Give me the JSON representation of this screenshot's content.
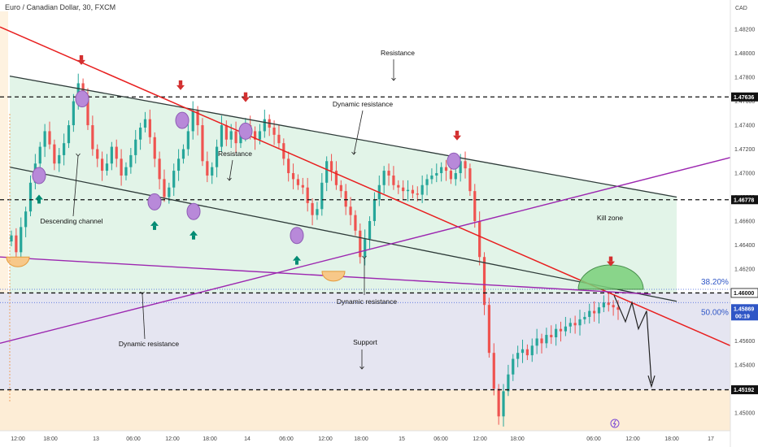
{
  "header": {
    "title": "Euro / Canadian Dollar, 30, FXCM",
    "currency": "CAD"
  },
  "colors": {
    "up": "#26a69a",
    "down": "#ef5350",
    "red_line": "#e81f1f",
    "purple_line": "#9c27b0",
    "channel": "#2e3b39",
    "channel_fill": "#dff3e6",
    "resistance_zone": "#dcdcec",
    "support_zone": "#fde9cc",
    "kill_zone": "#7ad07a",
    "marker": "#b889d9"
  },
  "chart_data": {
    "type": "candlestick",
    "ylim": [
      1.4485,
      1.4835
    ],
    "x_ticks": [
      "12:00",
      "18:00",
      "13",
      "06:00",
      "12:00",
      "18:00",
      "14",
      "06:00",
      "12:00",
      "18:00",
      "15",
      "06:00",
      "12:00",
      "18:00",
      "06:00",
      "12:00",
      "18:00",
      "17"
    ],
    "y_ticks": [
      "1.48200",
      "1.48000",
      "1.47800",
      "1.47600",
      "1.47400",
      "1.47200",
      "1.47000",
      "1.46800",
      "1.46600",
      "1.46400",
      "1.46200",
      "1.46000",
      "1.45800",
      "1.45600",
      "1.45400",
      "1.45200",
      "1.45000",
      "1.44800"
    ],
    "price_tags": [
      {
        "label": "1.47636",
        "value": 1.47636,
        "style": "dark"
      },
      {
        "label": "1.46778",
        "value": 1.46778,
        "style": "dark"
      },
      {
        "label": "1.46000",
        "value": 1.46,
        "style": "outline"
      },
      {
        "label": "1.45869",
        "value": 1.45869,
        "style": "blue",
        "sub": "00:19"
      },
      {
        "label": "1.45192",
        "value": 1.45192,
        "style": "dark"
      }
    ],
    "horizontal_levels": [
      1.47636,
      1.46778,
      1.46,
      1.45192
    ],
    "fib_levels": [
      {
        "label": "38.20%",
        "value": 1.4603
      },
      {
        "label": "50.00%",
        "value": 1.4592
      }
    ],
    "close_series": [
      1.4648,
      1.4634,
      1.4655,
      1.4668,
      1.4692,
      1.4708,
      1.4722,
      1.4735,
      1.4724,
      1.4708,
      1.4715,
      1.4725,
      1.474,
      1.476,
      1.4775,
      1.4765,
      1.474,
      1.472,
      1.4712,
      1.4702,
      1.4708,
      1.4722,
      1.4712,
      1.4698,
      1.4705,
      1.4715,
      1.4728,
      1.4738,
      1.4745,
      1.473,
      1.4712,
      1.4695,
      1.468,
      1.4688,
      1.4702,
      1.4712,
      1.472,
      1.4735,
      1.4752,
      1.474,
      1.471,
      1.4698,
      1.4705,
      1.4722,
      1.474,
      1.4728,
      1.4735,
      1.4725,
      1.4732,
      1.474,
      1.4735,
      1.4728,
      1.4735,
      1.4745,
      1.4738,
      1.4732,
      1.4725,
      1.4712,
      1.47,
      1.4695,
      1.469,
      1.4688,
      1.4675,
      1.4665,
      1.467,
      1.4692,
      1.471,
      1.4702,
      1.469,
      1.4685,
      1.4672,
      1.4665,
      1.4652,
      1.463,
      1.4645,
      1.466,
      1.4678,
      1.469,
      1.4702,
      1.4698,
      1.469,
      1.4688,
      1.4685,
      1.4686,
      1.4683,
      1.4682,
      1.469,
      1.4695,
      1.4698,
      1.47,
      1.4705,
      1.4702,
      1.4695,
      1.47,
      1.471,
      1.4704,
      1.4685,
      1.466,
      1.463,
      1.459,
      1.455,
      1.452,
      1.4497,
      1.4518,
      1.4532,
      1.4545,
      1.455,
      1.4553,
      1.4548,
      1.4556,
      1.4562,
      1.4558,
      1.4565,
      1.4563,
      1.457,
      1.4568,
      1.4572,
      1.4575,
      1.4573,
      1.4578,
      1.458,
      1.4585,
      1.4583,
      1.4588,
      1.4592,
      1.459,
      1.4588,
      1.4586
    ],
    "channel": {
      "upper": [
        [
          1.4781,
          1.468
        ]
      ],
      "lower": [
        [
          1.4705,
          1.4593
        ]
      ]
    },
    "line_values": {
      "red_start": 1.4822,
      "red_end": 1.4556,
      "purple_start": 1.4558,
      "purple_end": 1.4713
    }
  },
  "annotations": {
    "resistance_top": "Resistance",
    "dynamic_resistance_1": "Dynamic resistance",
    "resistance_mid": "Resistance",
    "descending_channel": "Descending channel",
    "kill_zone": "Kill zone",
    "dynamic_resistance_2": "Dynamic resistance",
    "dynamic_resistance_3": "Dynamic resistance",
    "support": "Support"
  }
}
